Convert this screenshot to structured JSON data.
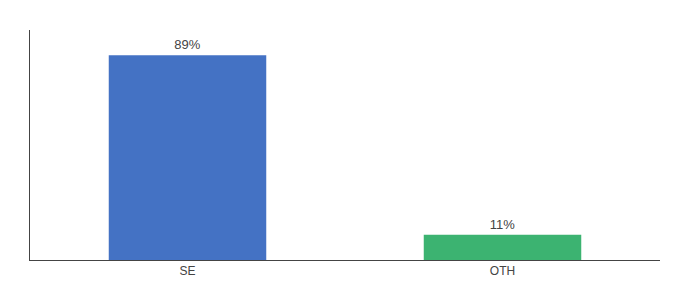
{
  "chart_data": {
    "type": "bar",
    "categories": [
      "SE",
      "OTH"
    ],
    "values": [
      89,
      11
    ],
    "value_labels": [
      "89%",
      "11%"
    ],
    "colors": [
      "#4472C4",
      "#3CB371"
    ],
    "ylim": [
      0,
      100
    ],
    "grid": false,
    "data_labels": true,
    "tick_labels": "x"
  }
}
